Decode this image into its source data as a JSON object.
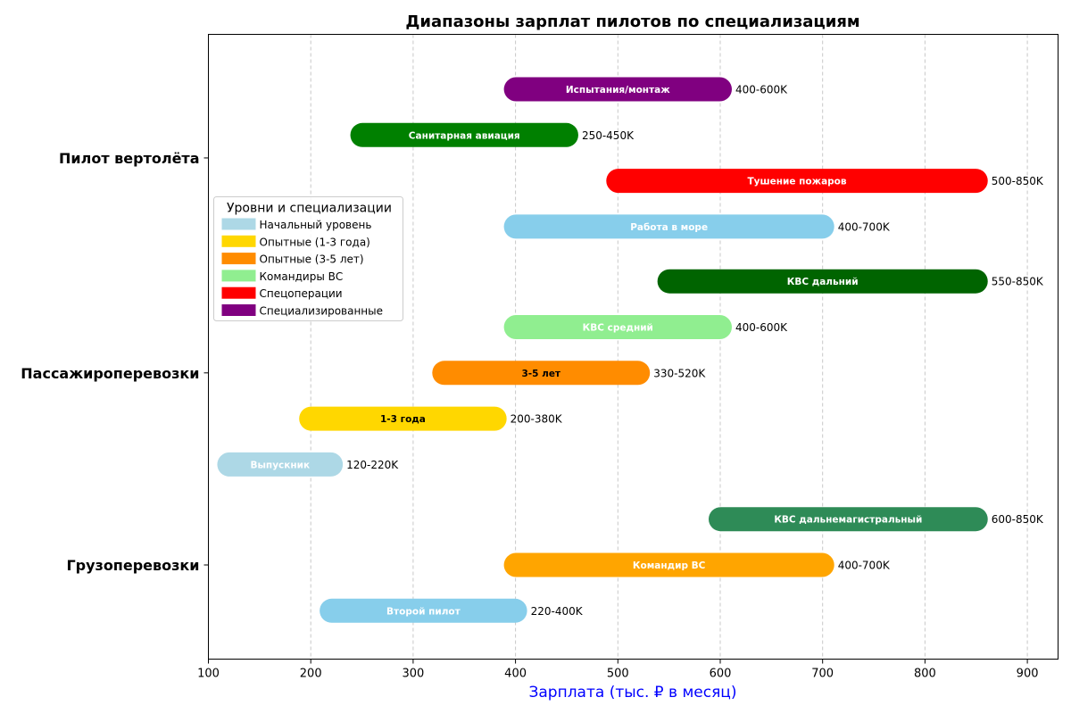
{
  "chart_data": {
    "type": "bar",
    "orientation": "horizontal-range",
    "title": "Диапазоны зарплат пилотов по специализациям",
    "xlabel": "Зарплата (тыс. ₽ в месяц)",
    "xlim": [
      100,
      930
    ],
    "xticks": [
      100,
      200,
      300,
      400,
      500,
      600,
      700,
      800,
      900
    ],
    "grid": "x",
    "categories": [
      "Пилот вертолёта",
      "Пассажироперевозки",
      "Грузоперевозки"
    ],
    "bars": [
      {
        "category": "Пилот вертолёта",
        "label": "Испытания/монтаж",
        "start": 400,
        "end": 600,
        "range_text": "400-600K",
        "color": "#800080",
        "text_color": "#ffffff"
      },
      {
        "category": "Пилот вертолёта",
        "label": "Санитарная авиация",
        "start": 250,
        "end": 450,
        "range_text": "250-450K",
        "color": "#008000",
        "text_color": "#ffffff"
      },
      {
        "category": "Пилот вертолёта",
        "label": "Тушение пожаров",
        "start": 500,
        "end": 850,
        "range_text": "500-850K",
        "color": "#ff0000",
        "text_color": "#ffffff"
      },
      {
        "category": "Пилот вертолёта",
        "label": "Работа в море",
        "start": 400,
        "end": 700,
        "range_text": "400-700K",
        "color": "#87ceeb",
        "text_color": "#ffffff"
      },
      {
        "category": "Пассажироперевозки",
        "label": "КВС дальний",
        "start": 550,
        "end": 850,
        "range_text": "550-850K",
        "color": "#006400",
        "text_color": "#ffffff"
      },
      {
        "category": "Пассажироперевозки",
        "label": "КВС средний",
        "start": 400,
        "end": 600,
        "range_text": "400-600K",
        "color": "#90ee90",
        "text_color": "#ffffff"
      },
      {
        "category": "Пассажироперевозки",
        "label": "3-5 лет",
        "start": 330,
        "end": 520,
        "range_text": "330-520K",
        "color": "#ff8c00",
        "text_color": "#000000"
      },
      {
        "category": "Пассажироперевозки",
        "label": "1-3 года",
        "start": 200,
        "end": 380,
        "range_text": "200-380K",
        "color": "#ffd700",
        "text_color": "#000000"
      },
      {
        "category": "Пассажироперевозки",
        "label": "Выпускник",
        "start": 120,
        "end": 220,
        "range_text": "120-220K",
        "color": "#add8e6",
        "text_color": "#ffffff"
      },
      {
        "category": "Грузоперевозки",
        "label": "КВС дальнемагистральный",
        "start": 600,
        "end": 850,
        "range_text": "600-850K",
        "color": "#2e8b57",
        "text_color": "#ffffff"
      },
      {
        "category": "Грузоперевозки",
        "label": "Командир ВС",
        "start": 400,
        "end": 700,
        "range_text": "400-700K",
        "color": "#ffa500",
        "text_color": "#ffffff"
      },
      {
        "category": "Грузоперевозки",
        "label": "Второй пилот",
        "start": 220,
        "end": 400,
        "range_text": "220-400K",
        "color": "#87ceeb",
        "text_color": "#ffffff"
      }
    ],
    "legend": {
      "title": "Уровни и специализации",
      "placement": "center-left",
      "entries": [
        {
          "label": "Начальный уровень",
          "color": "#add8e6"
        },
        {
          "label": "Опытные (1-3 года)",
          "color": "#ffd700"
        },
        {
          "label": "Опытные (3-5 лет)",
          "color": "#ff8c00"
        },
        {
          "label": "Командиры ВС",
          "color": "#90ee90"
        },
        {
          "label": "Спецоперации",
          "color": "#ff0000"
        },
        {
          "label": "Специализированные",
          "color": "#800080"
        }
      ]
    }
  }
}
